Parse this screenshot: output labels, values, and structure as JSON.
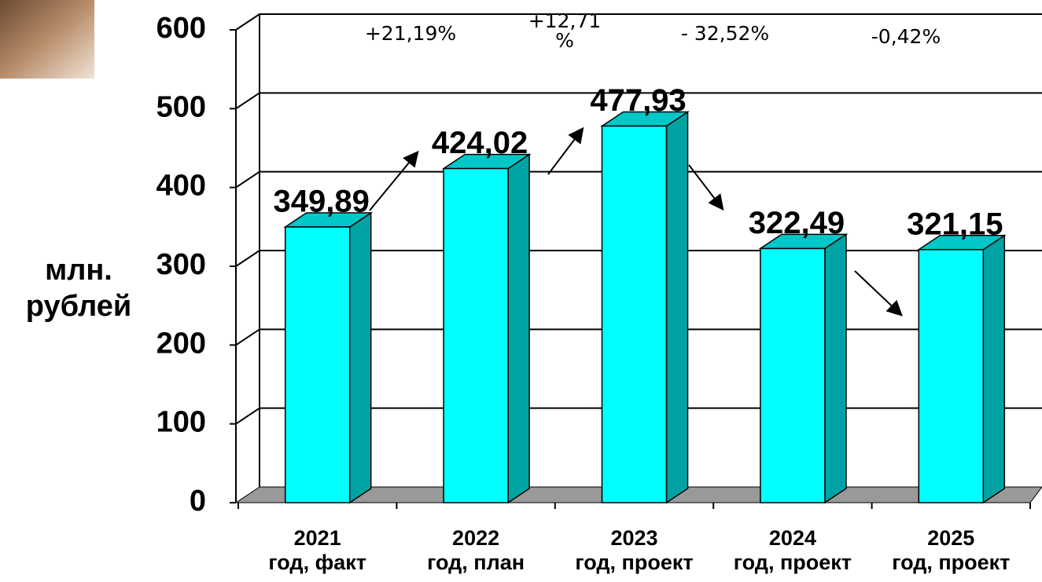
{
  "chart_data": {
    "type": "bar3d",
    "y_label": "млн.\nрублей",
    "categories": [
      "2021\nгод, факт",
      "2022\nгод, план",
      "2023\nгод, проект",
      "2024\nгод, проект",
      "2025\nгод, проект"
    ],
    "values": [
      349.89,
      424.02,
      477.93,
      322.49,
      321.15
    ],
    "value_labels": [
      "349,89",
      "424,02",
      "477,93",
      "322,49",
      "321,15"
    ],
    "annotations": [
      "+21,19%",
      "+12,71\n%",
      "- 32,52%",
      "-0,42%"
    ],
    "color": "#00ffff",
    "side_color": "#00a3a3",
    "top_color": "#00c8c8",
    "ylim": [
      0,
      600
    ],
    "yticks": [
      0,
      100,
      200,
      300,
      400,
      500,
      600
    ],
    "grid": true
  }
}
